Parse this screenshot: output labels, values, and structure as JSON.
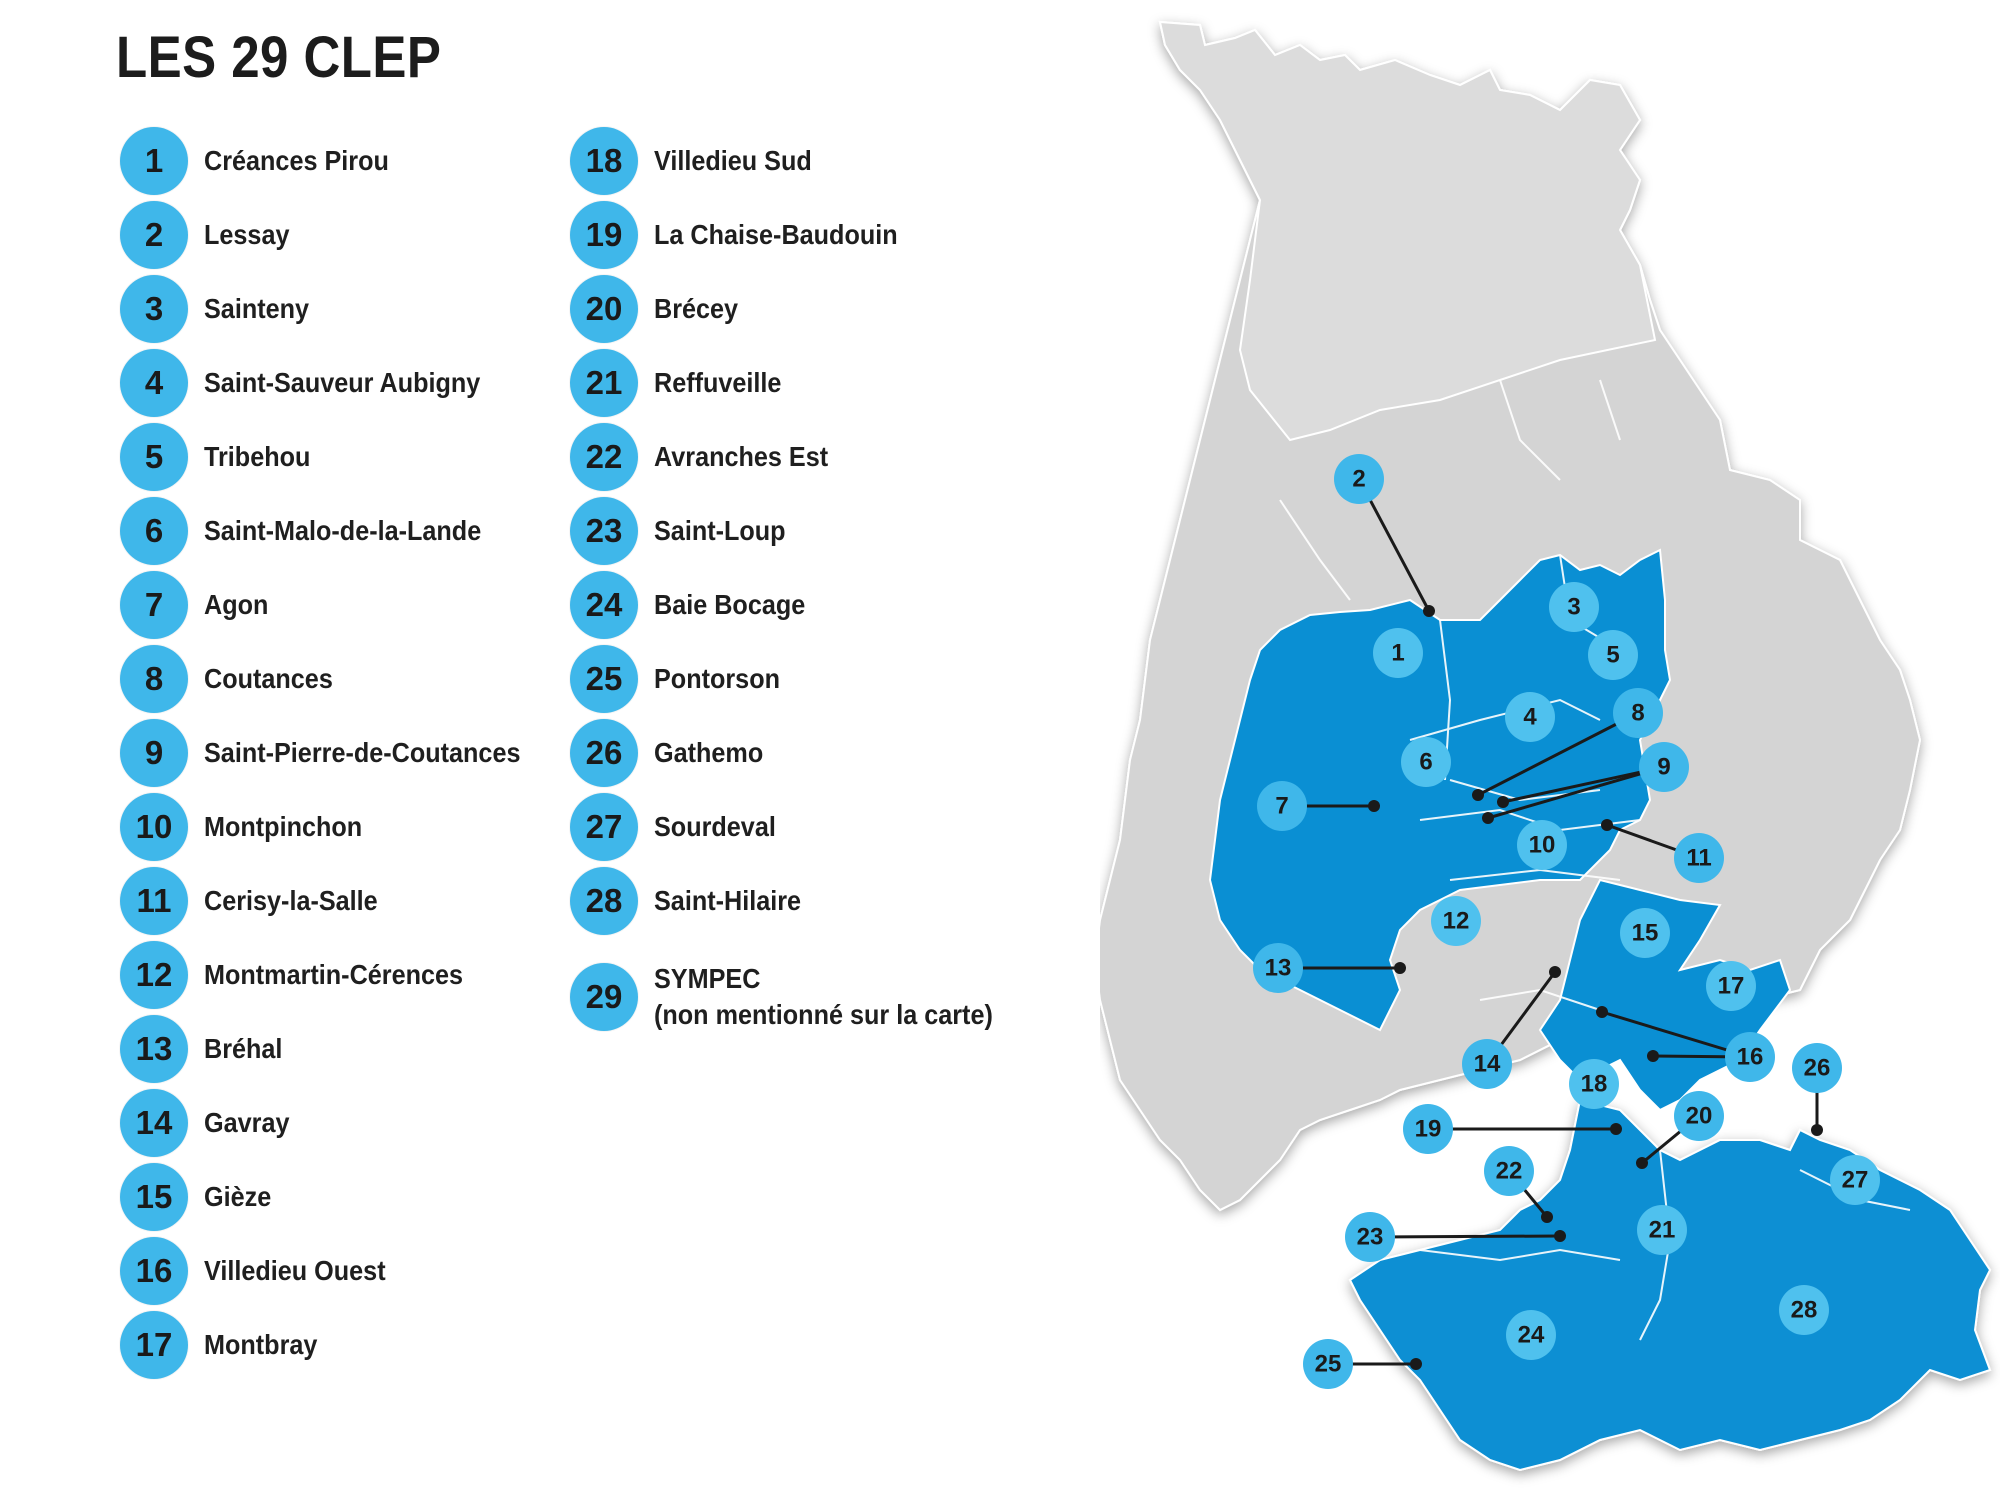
{
  "title": "LES 29 CLEP",
  "legend": {
    "col1": [
      {
        "num": "1",
        "name": "Créances Pirou"
      },
      {
        "num": "2",
        "name": "Lessay"
      },
      {
        "num": "3",
        "name": "Sainteny"
      },
      {
        "num": "4",
        "name": "Saint-Sauveur Aubigny"
      },
      {
        "num": "5",
        "name": "Tribehou"
      },
      {
        "num": "6",
        "name": "Saint-Malo-de-la-Lande"
      },
      {
        "num": "7",
        "name": "Agon"
      },
      {
        "num": "8",
        "name": "Coutances"
      },
      {
        "num": "9",
        "name": "Saint-Pierre-de-Coutances"
      },
      {
        "num": "10",
        "name": "Montpinchon"
      },
      {
        "num": "11",
        "name": "Cerisy-la-Salle"
      },
      {
        "num": "12",
        "name": "Montmartin-Cérences"
      },
      {
        "num": "13",
        "name": "Bréhal"
      },
      {
        "num": "14",
        "name": "Gavray"
      },
      {
        "num": "15",
        "name": "Gièze"
      },
      {
        "num": "16",
        "name": "Villedieu Ouest"
      },
      {
        "num": "17",
        "name": "Montbray"
      }
    ],
    "col2": [
      {
        "num": "18",
        "name": "Villedieu Sud"
      },
      {
        "num": "19",
        "name": "La Chaise-Baudouin"
      },
      {
        "num": "20",
        "name": "Brécey"
      },
      {
        "num": "21",
        "name": "Reffuveille"
      },
      {
        "num": "22",
        "name": "Avranches Est"
      },
      {
        "num": "23",
        "name": "Saint-Loup"
      },
      {
        "num": "24",
        "name": "Baie Bocage"
      },
      {
        "num": "25",
        "name": "Pontorson"
      },
      {
        "num": "26",
        "name": "Gathemo"
      },
      {
        "num": "27",
        "name": "Sourdeval"
      },
      {
        "num": "28",
        "name": "Saint-Hilaire"
      }
    ],
    "sympec": {
      "num": "29",
      "name": "SYMPEC",
      "note": "(non mentionné sur la carte)"
    }
  },
  "map": {
    "colors": {
      "highlight": "#0a8fd3",
      "base": "#d4d4d4",
      "marker": "#3fb7ea",
      "border": "#ffffff"
    },
    "zone_labels": [
      "1",
      "3",
      "4",
      "5",
      "6",
      "10",
      "12",
      "15",
      "17",
      "18",
      "21",
      "24",
      "27",
      "28"
    ],
    "callouts": [
      "2",
      "7",
      "8",
      "9",
      "11",
      "13",
      "14",
      "16",
      "19",
      "20",
      "22",
      "23",
      "25",
      "26"
    ]
  }
}
